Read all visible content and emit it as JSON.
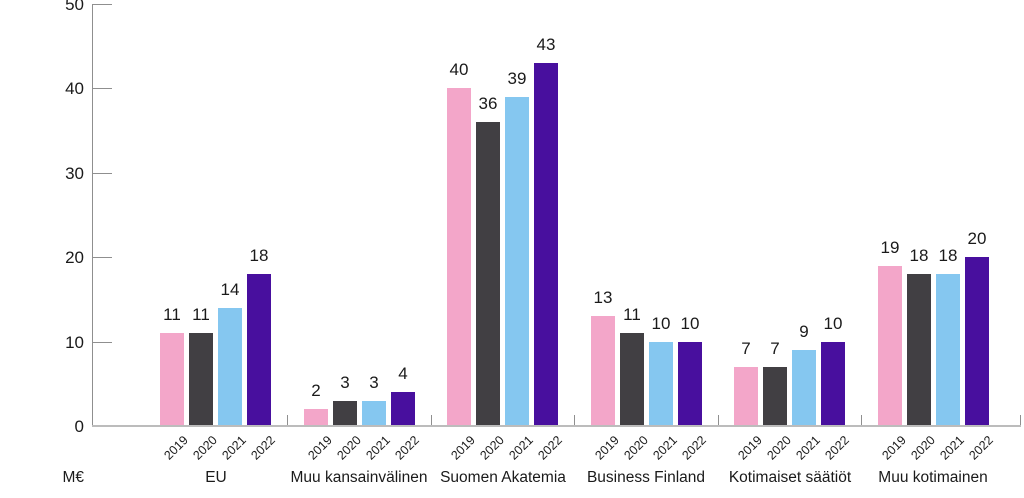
{
  "chart_data": {
    "type": "bar",
    "title": "",
    "ylabel": "M€",
    "xlabel": "",
    "categories": [
      "EU",
      "Muu kansainvälinen",
      "Suomen Akatemia",
      "Business Finland",
      "Kotimaiset säätiöt",
      "Muu kotimainen"
    ],
    "series": [
      {
        "name": "2019",
        "color": "#f3a6c9",
        "values": [
          11,
          2,
          40,
          13,
          7,
          19
        ]
      },
      {
        "name": "2020",
        "color": "#413f43",
        "values": [
          11,
          3,
          36,
          11,
          7,
          18
        ]
      },
      {
        "name": "2021",
        "color": "#85c7f0",
        "values": [
          14,
          3,
          39,
          10,
          9,
          18
        ]
      },
      {
        "name": "2022",
        "color": "#480f9e",
        "values": [
          18,
          4,
          43,
          10,
          10,
          20
        ]
      }
    ],
    "y_ticks": [
      0,
      10,
      20,
      30,
      40,
      50
    ],
    "ylim": [
      0,
      50
    ],
    "grid": false,
    "legend_position": "none",
    "bar_value_labels": true,
    "axis_colors": {
      "y_axis": "#8f8f8f",
      "x_axis": "#bcbcbc",
      "separator_tick": "#8f8f8f",
      "text": "#1a1a1a"
    }
  }
}
